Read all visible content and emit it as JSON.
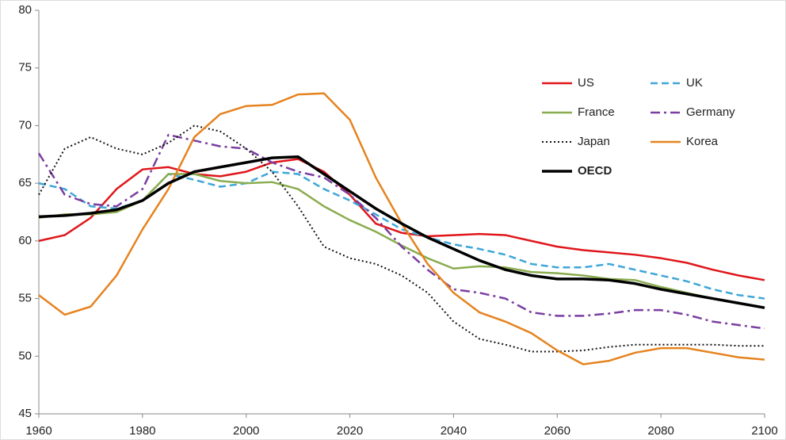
{
  "chart_data": {
    "type": "line",
    "x": [
      1960,
      1965,
      1970,
      1975,
      1980,
      1985,
      1990,
      1995,
      2000,
      2005,
      2010,
      2015,
      2020,
      2025,
      2030,
      2035,
      2040,
      2045,
      2050,
      2055,
      2060,
      2065,
      2070,
      2075,
      2080,
      2085,
      2090,
      2095,
      2100
    ],
    "xlim": [
      1960,
      2100
    ],
    "xticks": [
      1960,
      1980,
      2000,
      2020,
      2040,
      2060,
      2080,
      2100
    ],
    "ylim": [
      45,
      80
    ],
    "yticks": [
      45,
      50,
      55,
      60,
      65,
      70,
      75,
      80
    ],
    "series": [
      {
        "name": "US",
        "color": "#e0161b",
        "linestyle": "solid",
        "linewidth": 2.5,
        "values": [
          60,
          60.5,
          62,
          64.5,
          66.2,
          66.4,
          65.8,
          65.6,
          66,
          66.8,
          67.1,
          66,
          64,
          61.5,
          60.7,
          60.4,
          60.5,
          60.6,
          60.5,
          60,
          59.5,
          59.2,
          59,
          58.8,
          58.5,
          58.1,
          57.5,
          57,
          56.6
        ]
      },
      {
        "name": "UK",
        "color": "#3ea6d8",
        "linestyle": "dashed",
        "linewidth": 2.5,
        "values": [
          65,
          64.5,
          63,
          62.8,
          63.5,
          65.8,
          65.3,
          64.7,
          65,
          66,
          65.8,
          64.5,
          63.5,
          62.3,
          61,
          60.3,
          59.7,
          59.3,
          58.8,
          58,
          57.7,
          57.7,
          58,
          57.5,
          57,
          56.5,
          55.8,
          55.3,
          55
        ]
      },
      {
        "name": "France",
        "color": "#8aac4f",
        "linestyle": "solid",
        "linewidth": 2.5,
        "values": [
          62,
          62.3,
          62.3,
          62.5,
          63.5,
          65.8,
          65.8,
          65.2,
          65,
          65.1,
          64.5,
          63,
          61.8,
          60.8,
          59.6,
          58.5,
          57.6,
          57.8,
          57.7,
          57.3,
          57.2,
          57,
          56.7,
          56.6,
          56,
          55.5,
          55,
          54.6,
          54.2
        ]
      },
      {
        "name": "Germany",
        "color": "#7a3ea0",
        "linestyle": "dashdot",
        "linewidth": 2.5,
        "values": [
          67.6,
          64,
          63.2,
          63,
          64.5,
          69.2,
          68.7,
          68.2,
          68,
          66.8,
          66,
          65.5,
          64,
          62,
          59.5,
          57.5,
          55.8,
          55.5,
          55,
          53.8,
          53.5,
          53.5,
          53.7,
          54,
          54,
          53.6,
          53,
          52.7,
          52.4
        ]
      },
      {
        "name": "Japan",
        "color": "#111111",
        "linestyle": "dotted",
        "linewidth": 2,
        "values": [
          64,
          68,
          69,
          68,
          67.5,
          68.5,
          70,
          69.5,
          68,
          66,
          63,
          59.5,
          58.5,
          58,
          57,
          55.5,
          53,
          51.5,
          51,
          50.4,
          50.4,
          50.5,
          50.8,
          51,
          51,
          51,
          51,
          50.9,
          50.9
        ]
      },
      {
        "name": "Korea",
        "color": "#e5831f",
        "linestyle": "solid",
        "linewidth": 2.5,
        "values": [
          55.3,
          53.6,
          54.3,
          57,
          61,
          64.5,
          69,
          71,
          71.7,
          71.8,
          72.7,
          72.8,
          70.5,
          65.5,
          61.5,
          58,
          55.5,
          53.8,
          53,
          52,
          50.5,
          49.3,
          49.6,
          50.3,
          50.7,
          50.7,
          50.3,
          49.9,
          49.7
        ]
      },
      {
        "name": "OECD",
        "color": "#000000",
        "linestyle": "solid",
        "linewidth": 3.5,
        "values": [
          62.1,
          62.2,
          62.4,
          62.7,
          63.5,
          65,
          66,
          66.4,
          66.8,
          67.2,
          67.3,
          65.8,
          64.3,
          62.8,
          61.5,
          60.3,
          59.3,
          58.3,
          57.5,
          57,
          56.7,
          56.7,
          56.6,
          56.3,
          55.8,
          55.4,
          55,
          54.6,
          54.2
        ]
      }
    ]
  }
}
